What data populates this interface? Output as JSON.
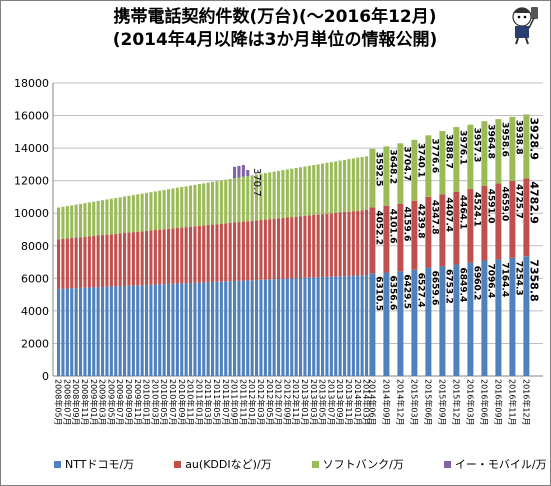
{
  "title": {
    "line1": "携帯電話契約件数(万台)(～2016年12月)",
    "line2": "(2014年4月以降は3か月単位の情報公開)"
  },
  "colors": {
    "docomo": "#4f81bd",
    "au": "#c0504d",
    "softbank": "#9bbb59",
    "emobile": "#8064a2"
  },
  "chart_data": {
    "type": "bar",
    "stacked": true,
    "ylim": [
      0,
      18000
    ],
    "yticks": [
      0,
      2000,
      4000,
      6000,
      8000,
      10000,
      12000,
      14000,
      16000,
      18000
    ],
    "grid": true,
    "legend_position": "bottom",
    "series": [
      {
        "name": "NTTドコモ/万",
        "color": "#4f81bd"
      },
      {
        "name": "au(KDDIなど)/万",
        "color": "#c0504d"
      },
      {
        "name": "ソフトバンク/万",
        "color": "#9bbb59"
      },
      {
        "name": "イー・モバイル/万",
        "color": "#8064a2"
      }
    ],
    "monthly": {
      "start": "2008年05月",
      "end": "2014年03月",
      "docomo": [
        5350,
        6200
      ],
      "au": [
        3050,
        4000
      ],
      "softbank": [
        1950,
        3300
      ],
      "emobile_end": 370.7
    },
    "quarterly": [
      {
        "x": "2014年06月",
        "docomo": 6310.5,
        "au": 4052.2,
        "softbank": 3592.5,
        "emobile": 0
      },
      {
        "x": "2014年09月",
        "docomo": 6356.6,
        "au": 4101.6,
        "softbank": 3648.2,
        "emobile": 0
      },
      {
        "x": "2014年12月",
        "docomo": 6429.5,
        "au": 4159.6,
        "softbank": 3704.7,
        "emobile": 0
      },
      {
        "x": "2015年03月",
        "docomo": 6527.4,
        "au": 4239.8,
        "softbank": 3740.1,
        "emobile": 0
      },
      {
        "x": "2015年06月",
        "docomo": 6659.6,
        "au": 4347.8,
        "softbank": 3776.6,
        "emobile": 0
      },
      {
        "x": "2015年09月",
        "docomo": 6753.2,
        "au": 4407.4,
        "softbank": 3888.7,
        "emobile": 0
      },
      {
        "x": "2015年12月",
        "docomo": 6849.4,
        "au": 4464.1,
        "softbank": 3976.1,
        "emobile": 0
      },
      {
        "x": "2016年03月",
        "docomo": 6960.2,
        "au": 4524.1,
        "softbank": 3957.3,
        "emobile": 0
      },
      {
        "x": "2016年06月",
        "docomo": 7096.4,
        "au": 4591.0,
        "softbank": 3964.8,
        "emobile": 0
      },
      {
        "x": "2016年09月",
        "docomo": 7164.4,
        "au": 4659.0,
        "softbank": 3958.6,
        "emobile": 0
      },
      {
        "x": "2016年11月",
        "docomo": 7254.3,
        "au": 4725.7,
        "softbank": 3938.8,
        "emobile": 0
      },
      {
        "x": "2016年12月",
        "docomo": 7358.8,
        "au": 4782.9,
        "softbank": 3928.9,
        "emobile": 0
      }
    ],
    "xtick_labels": [
      "2008年05月",
      "2008年07月",
      "2008年09月",
      "2008年11月",
      "2009年01月",
      "2009年03月",
      "2009年05月",
      "2009年07月",
      "2009年09月",
      "2009年11月",
      "2010年01月",
      "2010年03月",
      "2010年05月",
      "2010年07月",
      "2010年09月",
      "2010年11月",
      "2011年01月",
      "2011年03月",
      "2011年05月",
      "2011年07月",
      "2011年09月",
      "2011年11月",
      "2012年01月",
      "2012年03月",
      "2012年05月",
      "2012年07月",
      "2012年09月",
      "2012年11月",
      "2013年01月",
      "2013年03月",
      "2013年05月",
      "2013年07月",
      "2013年09月",
      "2013年11月",
      "2014年01月",
      "2014年03月",
      "2014年06月",
      "2014年09月",
      "2014年12月",
      "2015年03月",
      "2015年06月",
      "2015年09月",
      "2015年12月",
      "2016年03月",
      "2016年06月",
      "2016年09月",
      "2016年11月",
      "2016年12月"
    ]
  }
}
